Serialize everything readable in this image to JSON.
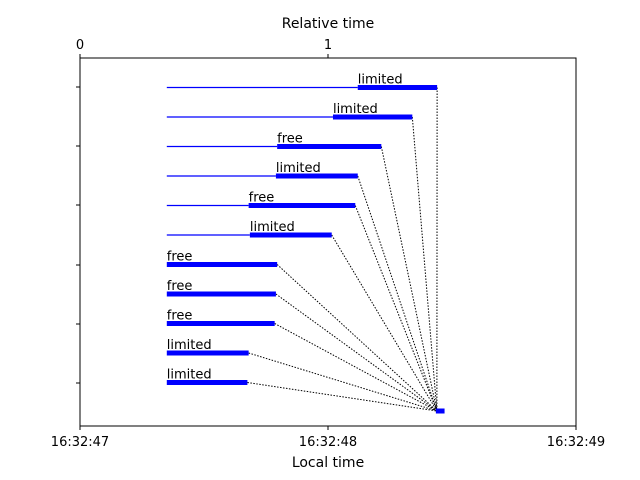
{
  "chart_data": {
    "type": "timeline",
    "xlabel": "Local time",
    "top_xlabel": "Relative time",
    "x_ticks": [
      "16:32:47",
      "16:32:48",
      "16:32:49"
    ],
    "top_ticks": [
      "0",
      "1"
    ],
    "xlim_seconds": [
      0,
      2
    ],
    "top_tick_positions_seconds": [
      0,
      1.0
    ],
    "tasks": [
      {
        "label": "limited",
        "wait_start": 0.35,
        "run_start": 1.12,
        "run_end": 1.44
      },
      {
        "label": "limited",
        "wait_start": 0.35,
        "run_start": 1.02,
        "run_end": 1.34
      },
      {
        "label": "free",
        "wait_start": 0.35,
        "run_start": 0.795,
        "run_end": 1.215
      },
      {
        "label": "limited",
        "wait_start": 0.35,
        "run_start": 0.79,
        "run_end": 1.12
      },
      {
        "label": "free",
        "wait_start": 0.35,
        "run_start": 0.68,
        "run_end": 1.11
      },
      {
        "label": "limited",
        "wait_start": 0.35,
        "run_start": 0.685,
        "run_end": 1.015
      },
      {
        "label": "free",
        "wait_start": 0.35,
        "run_start": 0.35,
        "run_end": 0.795
      },
      {
        "label": "free",
        "wait_start": 0.35,
        "run_start": 0.35,
        "run_end": 0.79
      },
      {
        "label": "free",
        "wait_start": 0.35,
        "run_start": 0.35,
        "run_end": 0.785
      },
      {
        "label": "limited",
        "wait_start": 0.35,
        "run_start": 0.35,
        "run_end": 0.68
      },
      {
        "label": "limited",
        "wait_start": 0.35,
        "run_start": 0.35,
        "run_end": 0.675
      }
    ],
    "final": {
      "start": 1.435,
      "end": 1.47
    },
    "colors": {
      "bar": "#0000ff",
      "connector": "#000000"
    },
    "grid": false
  }
}
